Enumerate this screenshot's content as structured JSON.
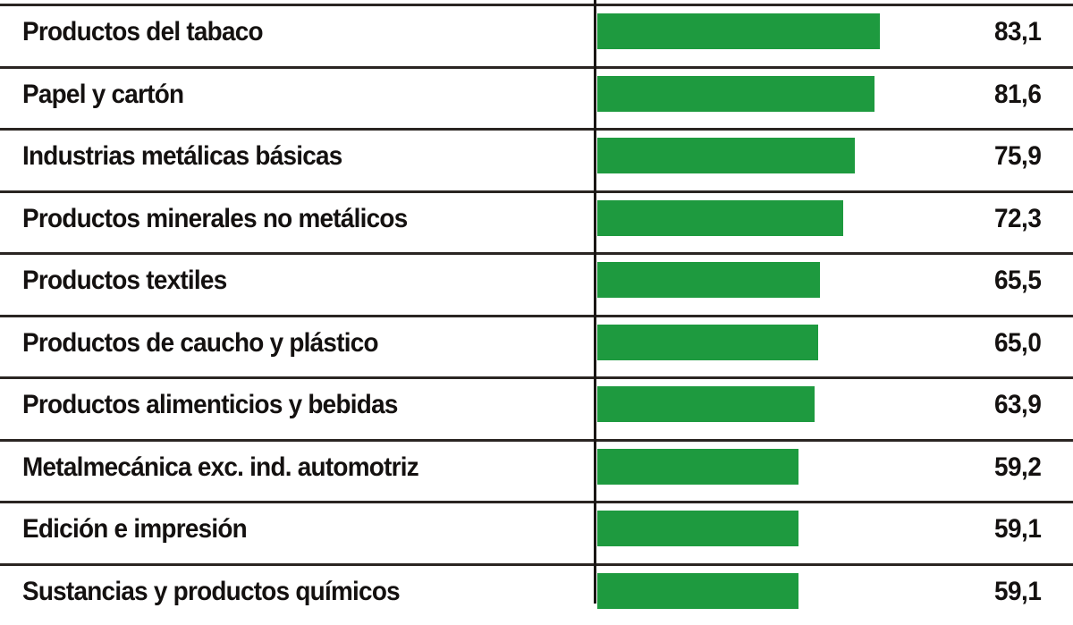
{
  "chart_data": {
    "type": "bar",
    "orientation": "horizontal",
    "title": "",
    "xlabel": "",
    "ylabel": "",
    "categories": [
      "Productos del tabaco",
      "Papel y cartón",
      "Industrias metálicas básicas",
      "Productos minerales no metálicos",
      "Productos textiles",
      "Productos de caucho y plástico",
      "Productos alimenticios y bebidas",
      "Metalmecánica exc. ind. automotriz",
      "Edición e impresión",
      "Sustancias y productos químicos"
    ],
    "values": [
      83.1,
      81.6,
      75.9,
      72.3,
      65.5,
      65.0,
      63.9,
      59.2,
      59.1,
      59.1
    ],
    "value_labels": [
      "83,1",
      "81,6",
      "75,9",
      "72,3",
      "65,5",
      "65,0",
      "63,9",
      "59,2",
      "59,1",
      "59,1"
    ],
    "bar_color": "#1e9a3f",
    "grid": false,
    "legend": null
  },
  "rows": [
    {
      "label": "Productos del tabaco",
      "value": "83,1",
      "v": 83.1
    },
    {
      "label": "Papel y cartón",
      "value": "81,6",
      "v": 81.6
    },
    {
      "label": "Industrias metálicas básicas",
      "value": "75,9",
      "v": 75.9
    },
    {
      "label": "Productos minerales no metálicos",
      "value": "72,3",
      "v": 72.3
    },
    {
      "label": "Productos textiles",
      "value": "65,5",
      "v": 65.5
    },
    {
      "label": "Productos de caucho y plástico",
      "value": "65,0",
      "v": 65.0
    },
    {
      "label": "Productos alimenticios y bebidas",
      "value": "63,9",
      "v": 63.9
    },
    {
      "label": "Metalmecánica exc. ind. automotriz",
      "value": "59,2",
      "v": 59.2
    },
    {
      "label": "Edición e impresión",
      "value": "59,1",
      "v": 59.1
    },
    {
      "label": "Sustancias y productos químicos",
      "value": "59,1",
      "v": 59.1
    }
  ],
  "colors": {
    "bar": "#1e9a3f",
    "text": "#141110",
    "rule": "#2a2522"
  }
}
